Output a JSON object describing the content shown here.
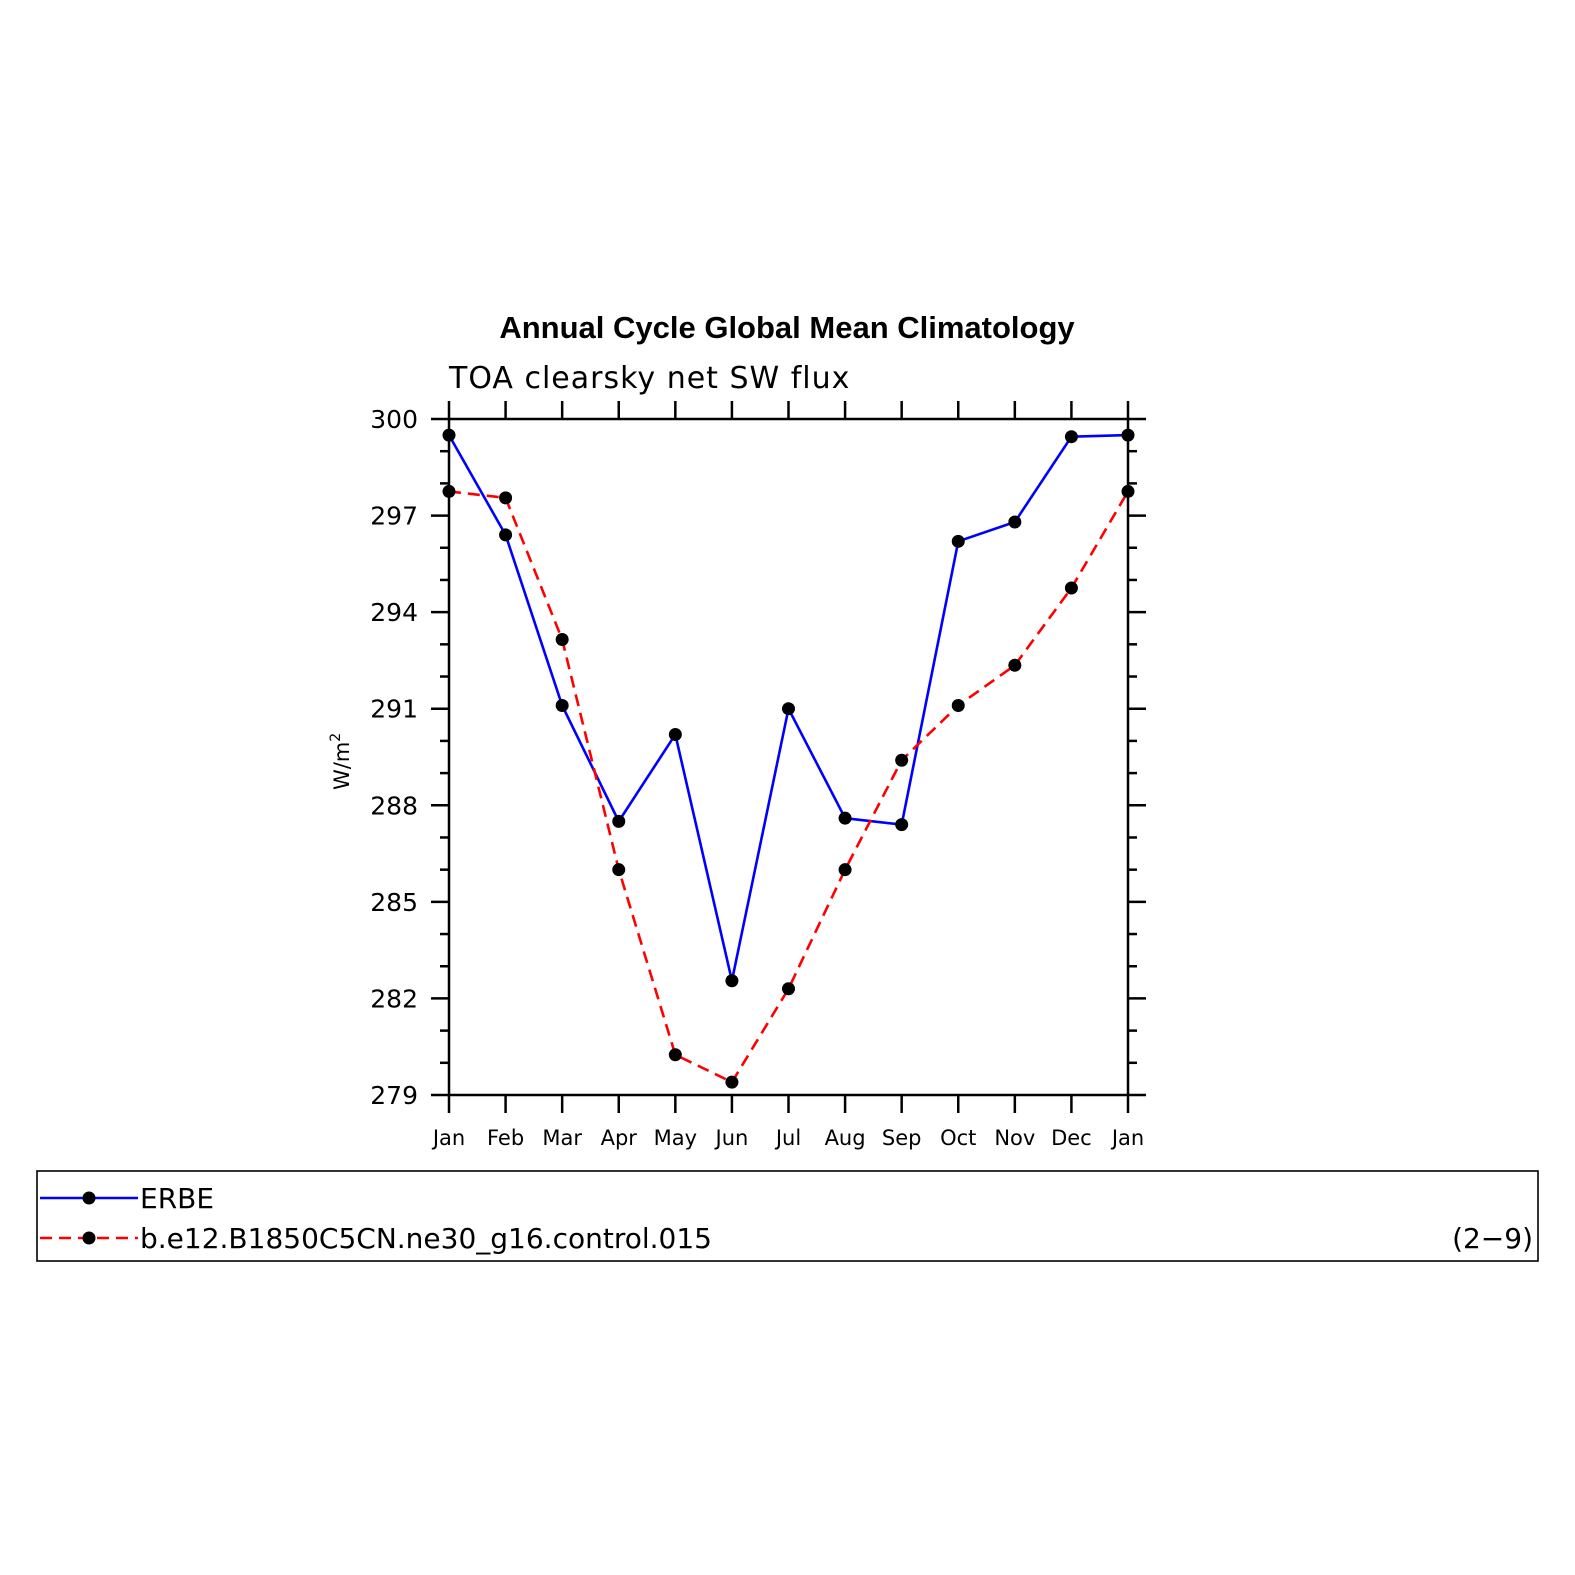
{
  "chart_data": {
    "type": "line",
    "title": "Annual Cycle Global Mean Climatology",
    "subtitle": "TOA clearsky net SW flux",
    "ylabel": "W/m",
    "ylabel_sup": "2",
    "categories": [
      "Jan",
      "Feb",
      "Mar",
      "Apr",
      "May",
      "Jun",
      "Jul",
      "Aug",
      "Sep",
      "Oct",
      "Nov",
      "Dec",
      "Jan"
    ],
    "ylim": [
      279,
      300
    ],
    "yticks": [
      300,
      297,
      294,
      291,
      288,
      285,
      282,
      279
    ],
    "series": [
      {
        "name": "ERBE",
        "color": "#0000ff",
        "dash": "solid",
        "values": [
          299.5,
          296.4,
          291.1,
          287.5,
          290.2,
          282.55,
          291.0,
          287.6,
          287.4,
          296.2,
          296.8,
          299.45,
          299.5
        ]
      },
      {
        "name": "b.e12.B1850C5CN.ne30_g16.control.015",
        "color": "#ff0000",
        "dash": "dashed",
        "values": [
          297.75,
          297.55,
          293.15,
          286.0,
          280.25,
          279.4,
          282.3,
          286.0,
          289.4,
          291.1,
          292.35,
          294.75,
          297.75
        ]
      }
    ],
    "legend_note": "(2−9)"
  }
}
